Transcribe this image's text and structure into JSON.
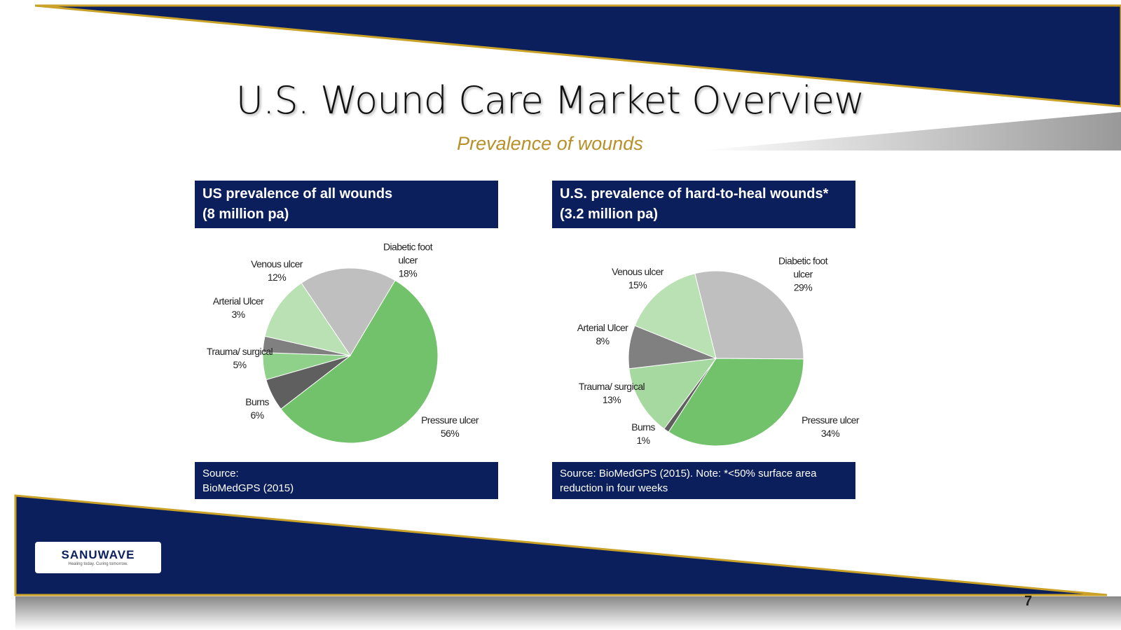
{
  "title": "U.S. Wound Care Market Overview",
  "subtitle": "Prevalence of wounds",
  "logo": {
    "name": "SANUWAVE",
    "tagline": "Healing today. Curing tomorrow."
  },
  "page_number": "7",
  "chart_data": [
    {
      "type": "pie",
      "title": [
        "US prevalence of all wounds",
        "(8 million pa)"
      ],
      "categories": [
        "Diabetic foot ulcer",
        "Pressure ulcer",
        "Burns",
        "Trauma/ surgical",
        "Arterial Ulcer",
        "Venous ulcer"
      ],
      "values": [
        18,
        56,
        6,
        5,
        3,
        12
      ],
      "value_labels": [
        "18%",
        "56%",
        "6%",
        "5%",
        "3%",
        "12%"
      ],
      "colors": [
        "#bfbfbf",
        "#72c16b",
        "#5f5f5f",
        "#8fd08a",
        "#808080",
        "#b9e1b3"
      ],
      "source": [
        "Source:",
        "BioMedGPS (2015)"
      ]
    },
    {
      "type": "pie",
      "title": [
        "U.S. prevalence of hard-to-heal wounds*",
        "(3.2 million pa)"
      ],
      "categories": [
        "Diabetic foot ulcer",
        "Pressure ulcer",
        "Burns",
        "Trauma/ surgical",
        "Arterial Ulcer",
        "Venous ulcer"
      ],
      "values": [
        29,
        34,
        1,
        13,
        8,
        15
      ],
      "value_labels": [
        "29%",
        "34%",
        "1%",
        "13%",
        "8%",
        "15%"
      ],
      "colors": [
        "#bfbfbf",
        "#72c16b",
        "#5f5f5f",
        "#a6d9a0",
        "#808080",
        "#b9e1b3"
      ],
      "source": [
        "Source: BioMedGPS (2015). Note: *<50% surface area",
        "reduction in four weeks"
      ]
    }
  ]
}
